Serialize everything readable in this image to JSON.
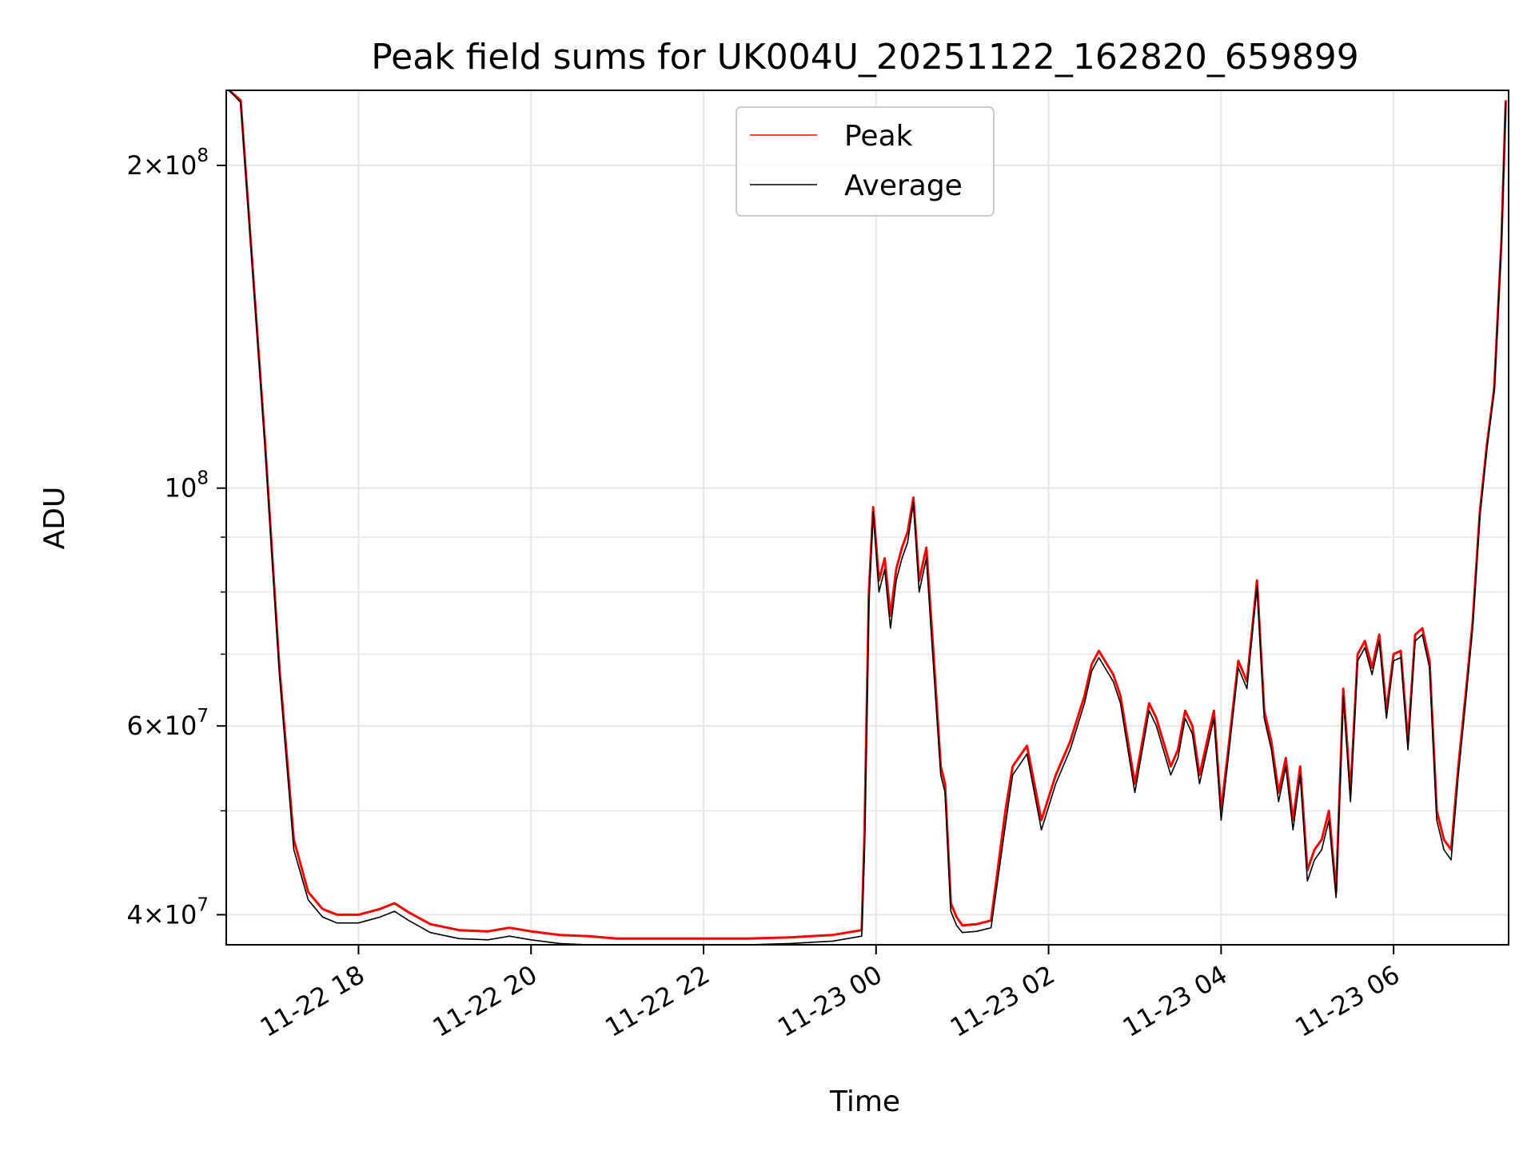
{
  "chart_data": {
    "type": "line",
    "title": "Peak field sums for UK004U_20251122_162820_659899",
    "xlabel": "Time",
    "ylabel": "ADU",
    "y_scale": "log",
    "ylim": [
      37500000,
      235000000
    ],
    "xlim": [
      "2025-11-22 16:28",
      "2025-11-23 07:20"
    ],
    "grid": true,
    "legend": {
      "placement": "top-center"
    },
    "x_ticks": [
      "11-22 18",
      "11-22 20",
      "11-22 22",
      "11-23 00",
      "11-23 02",
      "11-23 04",
      "11-23 06"
    ],
    "x_tick_values": [
      "2025-11-22 18:00",
      "2025-11-22 20:00",
      "2025-11-22 22:00",
      "2025-11-23 00:00",
      "2025-11-23 02:00",
      "2025-11-23 04:00",
      "2025-11-23 06:00"
    ],
    "y_major_ticks": [
      {
        "value": 40000000,
        "mant": "4",
        "exp": "7"
      },
      {
        "value": 60000000,
        "mant": "6",
        "exp": "7"
      },
      {
        "value": 100000000,
        "mant": "",
        "exp": "8"
      },
      {
        "value": 200000000,
        "mant": "2",
        "exp": "8"
      }
    ],
    "y_minor_ticks": [
      50000000,
      70000000,
      80000000,
      90000000
    ],
    "series": [
      {
        "name": "Peak",
        "color": "#ff0000",
        "x": [
          "2025-11-22 16:30",
          "2025-11-22 16:38",
          "2025-11-22 16:45",
          "2025-11-22 16:55",
          "2025-11-22 17:05",
          "2025-11-22 17:15",
          "2025-11-22 17:25",
          "2025-11-22 17:35",
          "2025-11-22 17:45",
          "2025-11-22 18:00",
          "2025-11-22 18:15",
          "2025-11-22 18:25",
          "2025-11-22 18:35",
          "2025-11-22 18:50",
          "2025-11-22 19:10",
          "2025-11-22 19:30",
          "2025-11-22 19:45",
          "2025-11-22 20:00",
          "2025-11-22 20:20",
          "2025-11-22 20:40",
          "2025-11-22 21:00",
          "2025-11-22 21:30",
          "2025-11-22 22:00",
          "2025-11-22 22:30",
          "2025-11-22 23:00",
          "2025-11-22 23:30",
          "2025-11-22 23:50",
          "2025-11-22 23:52",
          "2025-11-22 23:55",
          "2025-11-22 23:58",
          "2025-11-23 00:02",
          "2025-11-23 00:06",
          "2025-11-23 00:10",
          "2025-11-23 00:14",
          "2025-11-23 00:18",
          "2025-11-23 00:22",
          "2025-11-23 00:26",
          "2025-11-23 00:30",
          "2025-11-23 00:35",
          "2025-11-23 00:40",
          "2025-11-23 00:45",
          "2025-11-23 00:48",
          "2025-11-23 00:52",
          "2025-11-23 00:56",
          "2025-11-23 01:00",
          "2025-11-23 01:10",
          "2025-11-23 01:20",
          "2025-11-23 01:30",
          "2025-11-23 01:35",
          "2025-11-23 01:45",
          "2025-11-23 01:55",
          "2025-11-23 02:05",
          "2025-11-23 02:15",
          "2025-11-23 02:25",
          "2025-11-23 02:30",
          "2025-11-23 02:35",
          "2025-11-23 02:45",
          "2025-11-23 02:50",
          "2025-11-23 03:00",
          "2025-11-23 03:10",
          "2025-11-23 03:15",
          "2025-11-23 03:25",
          "2025-11-23 03:30",
          "2025-11-23 03:35",
          "2025-11-23 03:40",
          "2025-11-23 03:45",
          "2025-11-23 03:55",
          "2025-11-23 04:00",
          "2025-11-23 04:05",
          "2025-11-23 04:12",
          "2025-11-23 04:18",
          "2025-11-23 04:25",
          "2025-11-23 04:30",
          "2025-11-23 04:35",
          "2025-11-23 04:40",
          "2025-11-23 04:45",
          "2025-11-23 04:50",
          "2025-11-23 04:55",
          "2025-11-23 05:00",
          "2025-11-23 05:05",
          "2025-11-23 05:10",
          "2025-11-23 05:15",
          "2025-11-23 05:20",
          "2025-11-23 05:25",
          "2025-11-23 05:30",
          "2025-11-23 05:35",
          "2025-11-23 05:40",
          "2025-11-23 05:45",
          "2025-11-23 05:50",
          "2025-11-23 05:55",
          "2025-11-23 06:00",
          "2025-11-23 06:05",
          "2025-11-23 06:10",
          "2025-11-23 06:15",
          "2025-11-23 06:20",
          "2025-11-23 06:25",
          "2025-11-23 06:30",
          "2025-11-23 06:35",
          "2025-11-23 06:40",
          "2025-11-23 06:45",
          "2025-11-23 06:50",
          "2025-11-23 06:55",
          "2025-11-23 07:00",
          "2025-11-23 07:05",
          "2025-11-23 07:10",
          "2025-11-23 07:15",
          "2025-11-23 07:18"
        ],
        "y": [
          235000000,
          230000000,
          170000000,
          110000000,
          68000000,
          47000000,
          42000000,
          40500000,
          40000000,
          40000000,
          40500000,
          41000000,
          40200000,
          39200000,
          38700000,
          38600000,
          38900000,
          38600000,
          38300000,
          38200000,
          38000000,
          38000000,
          38000000,
          38000000,
          38100000,
          38300000,
          38700000,
          48000000,
          80000000,
          96000000,
          82000000,
          86000000,
          76000000,
          84000000,
          88000000,
          91000000,
          98000000,
          82000000,
          88000000,
          70000000,
          55000000,
          53000000,
          41000000,
          39800000,
          39100000,
          39200000,
          39500000,
          50000000,
          55000000,
          57500000,
          49000000,
          54000000,
          58000000,
          64000000,
          68500000,
          70500000,
          67000000,
          64000000,
          53000000,
          63000000,
          61000000,
          55000000,
          57000000,
          62000000,
          60000000,
          54000000,
          62000000,
          50000000,
          57000000,
          69000000,
          66000000,
          82000000,
          62000000,
          58000000,
          52000000,
          56000000,
          49000000,
          55000000,
          44000000,
          46000000,
          47000000,
          50000000,
          42000000,
          65000000,
          52000000,
          70000000,
          72000000,
          68000000,
          73000000,
          62000000,
          70000000,
          70500000,
          58000000,
          73000000,
          74000000,
          69000000,
          50000000,
          47000000,
          46000000,
          55000000,
          64000000,
          75000000,
          95000000,
          110000000,
          124000000,
          170000000,
          230000000
        ]
      },
      {
        "name": "Average",
        "color": "#000000",
        "x": [
          "2025-11-22 16:30",
          "2025-11-22 16:38",
          "2025-11-22 16:45",
          "2025-11-22 16:55",
          "2025-11-22 17:05",
          "2025-11-22 17:15",
          "2025-11-22 17:25",
          "2025-11-22 17:35",
          "2025-11-22 17:45",
          "2025-11-22 18:00",
          "2025-11-22 18:15",
          "2025-11-22 18:25",
          "2025-11-22 18:35",
          "2025-11-22 18:50",
          "2025-11-22 19:10",
          "2025-11-22 19:30",
          "2025-11-22 19:45",
          "2025-11-22 20:00",
          "2025-11-22 20:20",
          "2025-11-22 20:40",
          "2025-11-22 21:00",
          "2025-11-22 21:30",
          "2025-11-22 22:00",
          "2025-11-22 22:30",
          "2025-11-22 23:00",
          "2025-11-22 23:30",
          "2025-11-22 23:50",
          "2025-11-22 23:52",
          "2025-11-22 23:55",
          "2025-11-22 23:58",
          "2025-11-23 00:02",
          "2025-11-23 00:06",
          "2025-11-23 00:10",
          "2025-11-23 00:14",
          "2025-11-23 00:18",
          "2025-11-23 00:22",
          "2025-11-23 00:26",
          "2025-11-23 00:30",
          "2025-11-23 00:35",
          "2025-11-23 00:40",
          "2025-11-23 00:45",
          "2025-11-23 00:48",
          "2025-11-23 00:52",
          "2025-11-23 00:56",
          "2025-11-23 01:00",
          "2025-11-23 01:10",
          "2025-11-23 01:20",
          "2025-11-23 01:30",
          "2025-11-23 01:35",
          "2025-11-23 01:45",
          "2025-11-23 01:55",
          "2025-11-23 02:05",
          "2025-11-23 02:15",
          "2025-11-23 02:25",
          "2025-11-23 02:30",
          "2025-11-23 02:35",
          "2025-11-23 02:45",
          "2025-11-23 02:50",
          "2025-11-23 03:00",
          "2025-11-23 03:10",
          "2025-11-23 03:15",
          "2025-11-23 03:25",
          "2025-11-23 03:30",
          "2025-11-23 03:35",
          "2025-11-23 03:40",
          "2025-11-23 03:45",
          "2025-11-23 03:55",
          "2025-11-23 04:00",
          "2025-11-23 04:05",
          "2025-11-23 04:12",
          "2025-11-23 04:18",
          "2025-11-23 04:25",
          "2025-11-23 04:30",
          "2025-11-23 04:35",
          "2025-11-23 04:40",
          "2025-11-23 04:45",
          "2025-11-23 04:50",
          "2025-11-23 04:55",
          "2025-11-23 05:00",
          "2025-11-23 05:05",
          "2025-11-23 05:10",
          "2025-11-23 05:15",
          "2025-11-23 05:20",
          "2025-11-23 05:25",
          "2025-11-23 05:30",
          "2025-11-23 05:35",
          "2025-11-23 05:40",
          "2025-11-23 05:45",
          "2025-11-23 05:50",
          "2025-11-23 05:55",
          "2025-11-23 06:00",
          "2025-11-23 06:05",
          "2025-11-23 06:10",
          "2025-11-23 06:15",
          "2025-11-23 06:20",
          "2025-11-23 06:25",
          "2025-11-23 06:30",
          "2025-11-23 06:35",
          "2025-11-23 06:40",
          "2025-11-23 06:45",
          "2025-11-23 06:50",
          "2025-11-23 06:55",
          "2025-11-23 07:00",
          "2025-11-23 07:05",
          "2025-11-23 07:10",
          "2025-11-23 07:15",
          "2025-11-23 07:18"
        ],
        "y": [
          235000000,
          229000000,
          169000000,
          109000000,
          67000000,
          46000000,
          41300000,
          39800000,
          39300000,
          39300000,
          39800000,
          40300000,
          39500000,
          38500000,
          38000000,
          37900000,
          38200000,
          37900000,
          37600000,
          37500000,
          37500000,
          37500000,
          37500000,
          37500000,
          37600000,
          37800000,
          38200000,
          46000000,
          78000000,
          95000000,
          80000000,
          84000000,
          74000000,
          82000000,
          86000000,
          89000000,
          97000000,
          80000000,
          86000000,
          68000000,
          54000000,
          52000000,
          40300000,
          39100000,
          38500000,
          38600000,
          38900000,
          48500000,
          54000000,
          56500000,
          48000000,
          53000000,
          57000000,
          63000000,
          67500000,
          69500000,
          66000000,
          63000000,
          52000000,
          62000000,
          60000000,
          54000000,
          56000000,
          61000000,
          59000000,
          53000000,
          61000000,
          49000000,
          56000000,
          68000000,
          65000000,
          81000000,
          61000000,
          57000000,
          51000000,
          55000000,
          48000000,
          54000000,
          43000000,
          45000000,
          46000000,
          49000000,
          41500000,
          64000000,
          51000000,
          69000000,
          71000000,
          67000000,
          72000000,
          61000000,
          69000000,
          69500000,
          57000000,
          72000000,
          73000000,
          68000000,
          49000000,
          46000000,
          45000000,
          54000000,
          63000000,
          74000000,
          94000000,
          109000000,
          123000000,
          169000000,
          229000000
        ]
      }
    ]
  }
}
